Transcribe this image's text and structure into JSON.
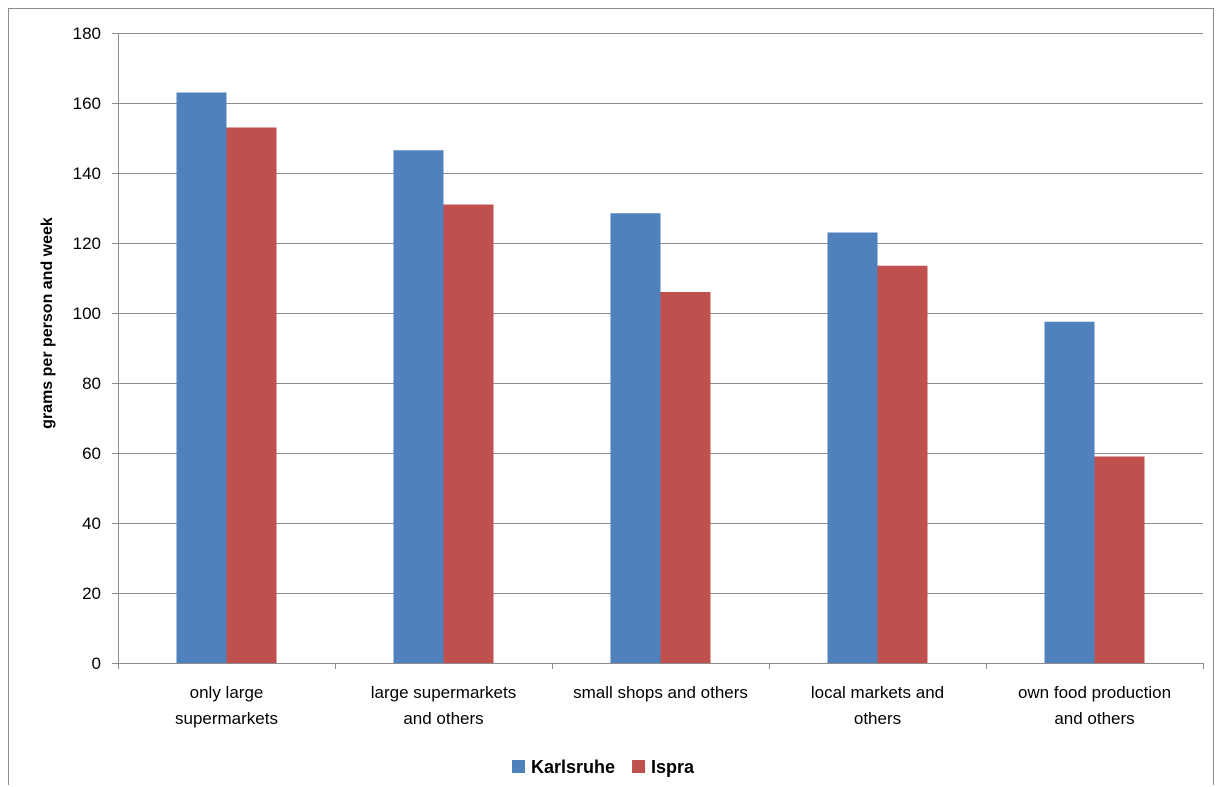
{
  "chart_data": {
    "type": "bar",
    "title": "",
    "xlabel": "",
    "ylabel": "grams per person and week",
    "ylim": [
      0,
      180
    ],
    "yticks": [
      0,
      20,
      40,
      60,
      80,
      100,
      120,
      140,
      160,
      180
    ],
    "grid": true,
    "legend_position": "bottom",
    "categories": [
      [
        "only large",
        "supermarkets"
      ],
      [
        "large supermarkets",
        "and others"
      ],
      [
        "small shops and others"
      ],
      [
        "local markets and",
        "others"
      ],
      [
        "own food production",
        "and others"
      ]
    ],
    "series": [
      {
        "name": "Karlsruhe",
        "color": "#4f81bd",
        "values": [
          163,
          146.5,
          128.5,
          123,
          97.5
        ]
      },
      {
        "name": "Ispra",
        "color": "#c0504d",
        "values": [
          153,
          131,
          106,
          113.5,
          59
        ]
      }
    ]
  }
}
